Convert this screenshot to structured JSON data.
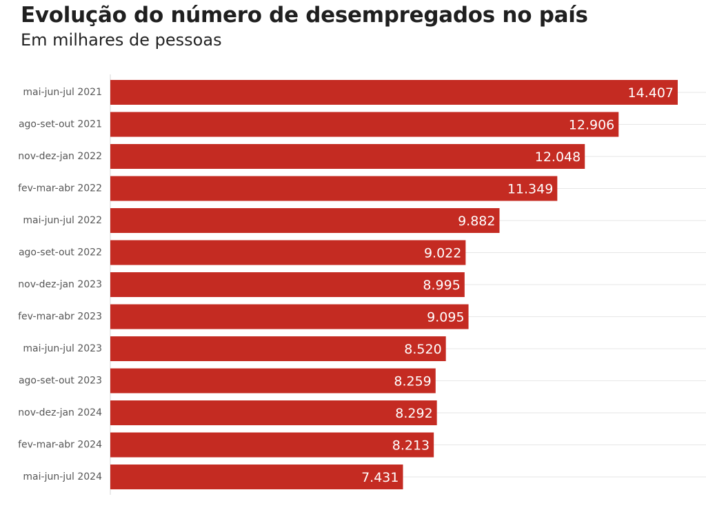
{
  "chart_data": {
    "type": "bar",
    "orientation": "horizontal",
    "title": "Evolução do número de desempregados no país",
    "subtitle": "Em milhares de pessoas",
    "categories": [
      "mai-jun-jul 2021",
      "ago-set-out 2021",
      "nov-dez-jan 2022",
      "fev-mar-abr 2022",
      "mai-jun-jul 2022",
      "ago-set-out 2022",
      "nov-dez-jan 2023",
      "fev-mar-abr 2023",
      "mai-jun-jul 2023",
      "ago-set-out 2023",
      "nov-dez-jan 2024",
      "fev-mar-abr 2024",
      "mai-jun-jul 2024"
    ],
    "values": [
      14407,
      12906,
      12048,
      11349,
      9882,
      9022,
      8995,
      9095,
      8520,
      8259,
      8292,
      8213,
      7431
    ],
    "value_labels": [
      "14.407",
      "12.906",
      "12.048",
      "11.349",
      "9.882",
      "9.022",
      "8.995",
      "9.095",
      "8.520",
      "8.259",
      "8.292",
      "8.213",
      "7.431"
    ],
    "xlim": [
      0,
      14407
    ],
    "grid": true,
    "bar_color": "#c42b22",
    "label_color": "#ffffff"
  }
}
